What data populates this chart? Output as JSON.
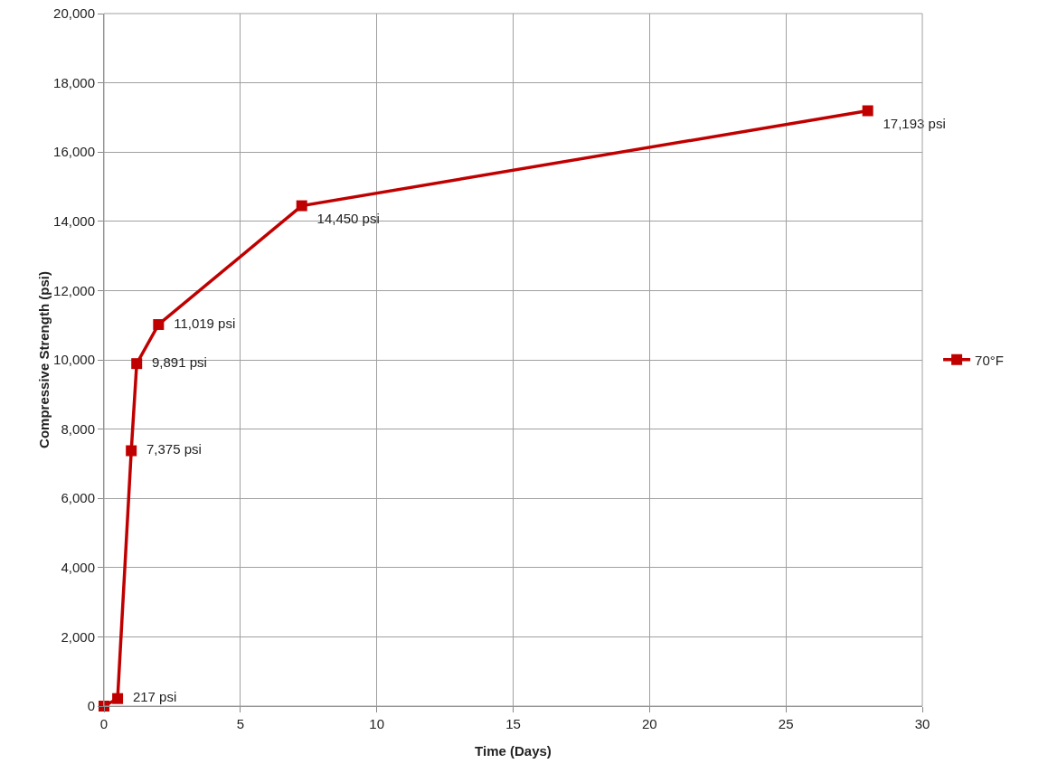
{
  "chart_data": {
    "type": "line",
    "xlabel": "Time (Days)",
    "ylabel": "Compressive Strength (psi)",
    "x": [
      0,
      0.5,
      1,
      1.2,
      2,
      7.25,
      28
    ],
    "series": [
      {
        "name": "70°F",
        "color": "#c00000",
        "values": [
          0,
          217,
          7375,
          9891,
          11019,
          14450,
          17193
        ],
        "value_labels": [
          null,
          "217 psi",
          "7,375 psi",
          "9,891 psi",
          "11,019 psi",
          "14,450 psi",
          "17,193 psi"
        ]
      }
    ],
    "xlim": [
      0,
      30
    ],
    "xticks": [
      0,
      5,
      10,
      15,
      20,
      25,
      30
    ],
    "ylim": [
      0,
      20000
    ],
    "yticks": [
      {
        "value": 0,
        "label": "0"
      },
      {
        "value": 2000,
        "label": "2,000"
      },
      {
        "value": 4000,
        "label": "4,000"
      },
      {
        "value": 6000,
        "label": "6,000"
      },
      {
        "value": 8000,
        "label": "8,000"
      },
      {
        "value": 10000,
        "label": "10,000"
      },
      {
        "value": 12000,
        "label": "12,000"
      },
      {
        "value": 14000,
        "label": "14,000"
      },
      {
        "value": 16000,
        "label": "16,000"
      },
      {
        "value": 18000,
        "label": "18,000"
      },
      {
        "value": 20000,
        "label": "20,000"
      }
    ],
    "grid": true,
    "legend": "right",
    "marker": "square",
    "line_style": "solid"
  }
}
